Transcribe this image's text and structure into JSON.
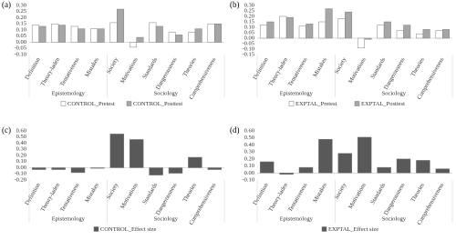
{
  "chart_data": [
    {
      "type": "bar",
      "label": "(a)",
      "groups": [
        {
          "name": "Epistemology",
          "categories": [
            "Definition",
            "Theory-laden",
            "Tentativeness",
            "Mistakes"
          ]
        },
        {
          "name": "Sociology",
          "categories": [
            "Society",
            "Motivations",
            "Standards",
            "Dangerousness",
            "Theories",
            "Comprehensiveness"
          ]
        }
      ],
      "series": [
        {
          "name": "CONTROL_Pretest",
          "color": "#ffffff",
          "values": [
            0.14,
            0.15,
            0.13,
            0.11,
            0.16,
            -0.04,
            0.16,
            0.08,
            0.08,
            0.15
          ]
        },
        {
          "name": "CONTROL_Posttest",
          "color": "#a6a6a6",
          "values": [
            0.13,
            0.14,
            0.11,
            0.11,
            0.27,
            0.04,
            0.13,
            0.06,
            0.11,
            0.15
          ]
        }
      ],
      "ylim": [
        -0.1,
        0.3
      ],
      "yticks": [
        {
          "value": -0.1,
          "label": "-0.10"
        },
        {
          "value": -0.05,
          "label": "-0.05"
        },
        {
          "value": 0,
          "label": "0.00"
        },
        {
          "value": 0.05,
          "label": "0.05"
        },
        {
          "value": 0.1,
          "label": "0.10"
        },
        {
          "value": 0.15,
          "label": "0.15"
        },
        {
          "value": 0.2,
          "label": "0.20"
        },
        {
          "value": 0.25,
          "label": "0.25"
        },
        {
          "value": 0.3,
          "label": "0.30"
        }
      ],
      "grid": false
    },
    {
      "type": "bar",
      "label": "(b)",
      "groups": [
        {
          "name": "Epistemology",
          "categories": [
            "Definition",
            "Theory-laden",
            "Tentativeness",
            "Mistakes"
          ]
        },
        {
          "name": "Sociology",
          "categories": [
            "Society",
            "Motivations",
            "Standards",
            "Dangerousness",
            "Theories",
            "Comprehensiveness"
          ]
        }
      ],
      "series": [
        {
          "name": "EXPTAL_Pretest",
          "color": "#ffffff",
          "values": [
            0.12,
            0.2,
            0.11,
            0.15,
            0.18,
            -0.09,
            0.12,
            0.07,
            0.04,
            0.07
          ]
        },
        {
          "name": "EXPTAL_Posttest",
          "color": "#a6a6a6",
          "values": [
            0.15,
            0.19,
            0.13,
            0.27,
            0.24,
            -0.01,
            0.15,
            0.12,
            0.08,
            0.08
          ]
        }
      ],
      "ylim": [
        -0.15,
        0.3
      ],
      "yticks": [
        {
          "value": -0.15,
          "label": "-0.15"
        },
        {
          "value": -0.1,
          "label": "-0.10"
        },
        {
          "value": -0.05,
          "label": "-0.05"
        },
        {
          "value": 0,
          "label": "0.00"
        },
        {
          "value": 0.05,
          "label": "0.05"
        },
        {
          "value": 0.1,
          "label": "0.10"
        },
        {
          "value": 0.15,
          "label": "0.15"
        },
        {
          "value": 0.2,
          "label": "0.20"
        },
        {
          "value": 0.25,
          "label": "0.25"
        },
        {
          "value": 0.3,
          "label": "0.30"
        }
      ],
      "grid": false
    },
    {
      "type": "bar",
      "label": "(c)",
      "groups": [
        {
          "name": "Epistemology",
          "categories": [
            "Definition",
            "Theory-laden",
            "Tentativeness",
            "Mistakes"
          ]
        },
        {
          "name": "Sociology",
          "categories": [
            "Society",
            "Motivations",
            "Standards",
            "Dangerousness",
            "Theories",
            "Comprehensiveness"
          ]
        }
      ],
      "series": [
        {
          "name": "CONTROL_Effect size",
          "color": "#595959",
          "values": [
            -0.03,
            -0.03,
            -0.08,
            -0.01,
            0.55,
            0.46,
            -0.12,
            -0.09,
            0.17,
            -0.03
          ]
        }
      ],
      "ylim": [
        -0.2,
        0.6
      ],
      "yticks": [
        {
          "value": -0.2,
          "label": "-0.20"
        },
        {
          "value": -0.1,
          "label": "-0.10"
        },
        {
          "value": 0,
          "label": "0.00"
        },
        {
          "value": 0.1,
          "label": "0.10"
        },
        {
          "value": 0.2,
          "label": "0.20"
        },
        {
          "value": 0.3,
          "label": "0.30"
        },
        {
          "value": 0.4,
          "label": "0.40"
        },
        {
          "value": 0.5,
          "label": "0.50"
        },
        {
          "value": 0.6,
          "label": "0.60"
        }
      ],
      "grid": false
    },
    {
      "type": "bar",
      "label": "(d)",
      "groups": [
        {
          "name": "Epistemology",
          "categories": [
            "Definition",
            "Theory-laden",
            "Tentativeness",
            "Mistakes"
          ]
        },
        {
          "name": "Sociology",
          "categories": [
            "Society",
            "Motivations",
            "Standards",
            "Dangerousness",
            "Theories",
            "Comprehensiveness"
          ]
        }
      ],
      "series": [
        {
          "name": "EXPTAL_Effect size",
          "color": "#595959",
          "values": [
            0.16,
            -0.02,
            0.08,
            0.48,
            0.28,
            0.51,
            0.08,
            0.2,
            0.18,
            0.06
          ]
        }
      ],
      "ylim": [
        -0.1,
        0.6
      ],
      "yticks": [
        {
          "value": -0.1,
          "label": "-0.10"
        },
        {
          "value": 0,
          "label": "0.00"
        },
        {
          "value": 0.1,
          "label": "0.10"
        },
        {
          "value": 0.2,
          "label": "0.20"
        },
        {
          "value": 0.3,
          "label": "0.30"
        },
        {
          "value": 0.4,
          "label": "0.40"
        },
        {
          "value": 0.5,
          "label": "0.50"
        },
        {
          "value": 0.6,
          "label": "0.60"
        }
      ],
      "grid": false
    }
  ]
}
